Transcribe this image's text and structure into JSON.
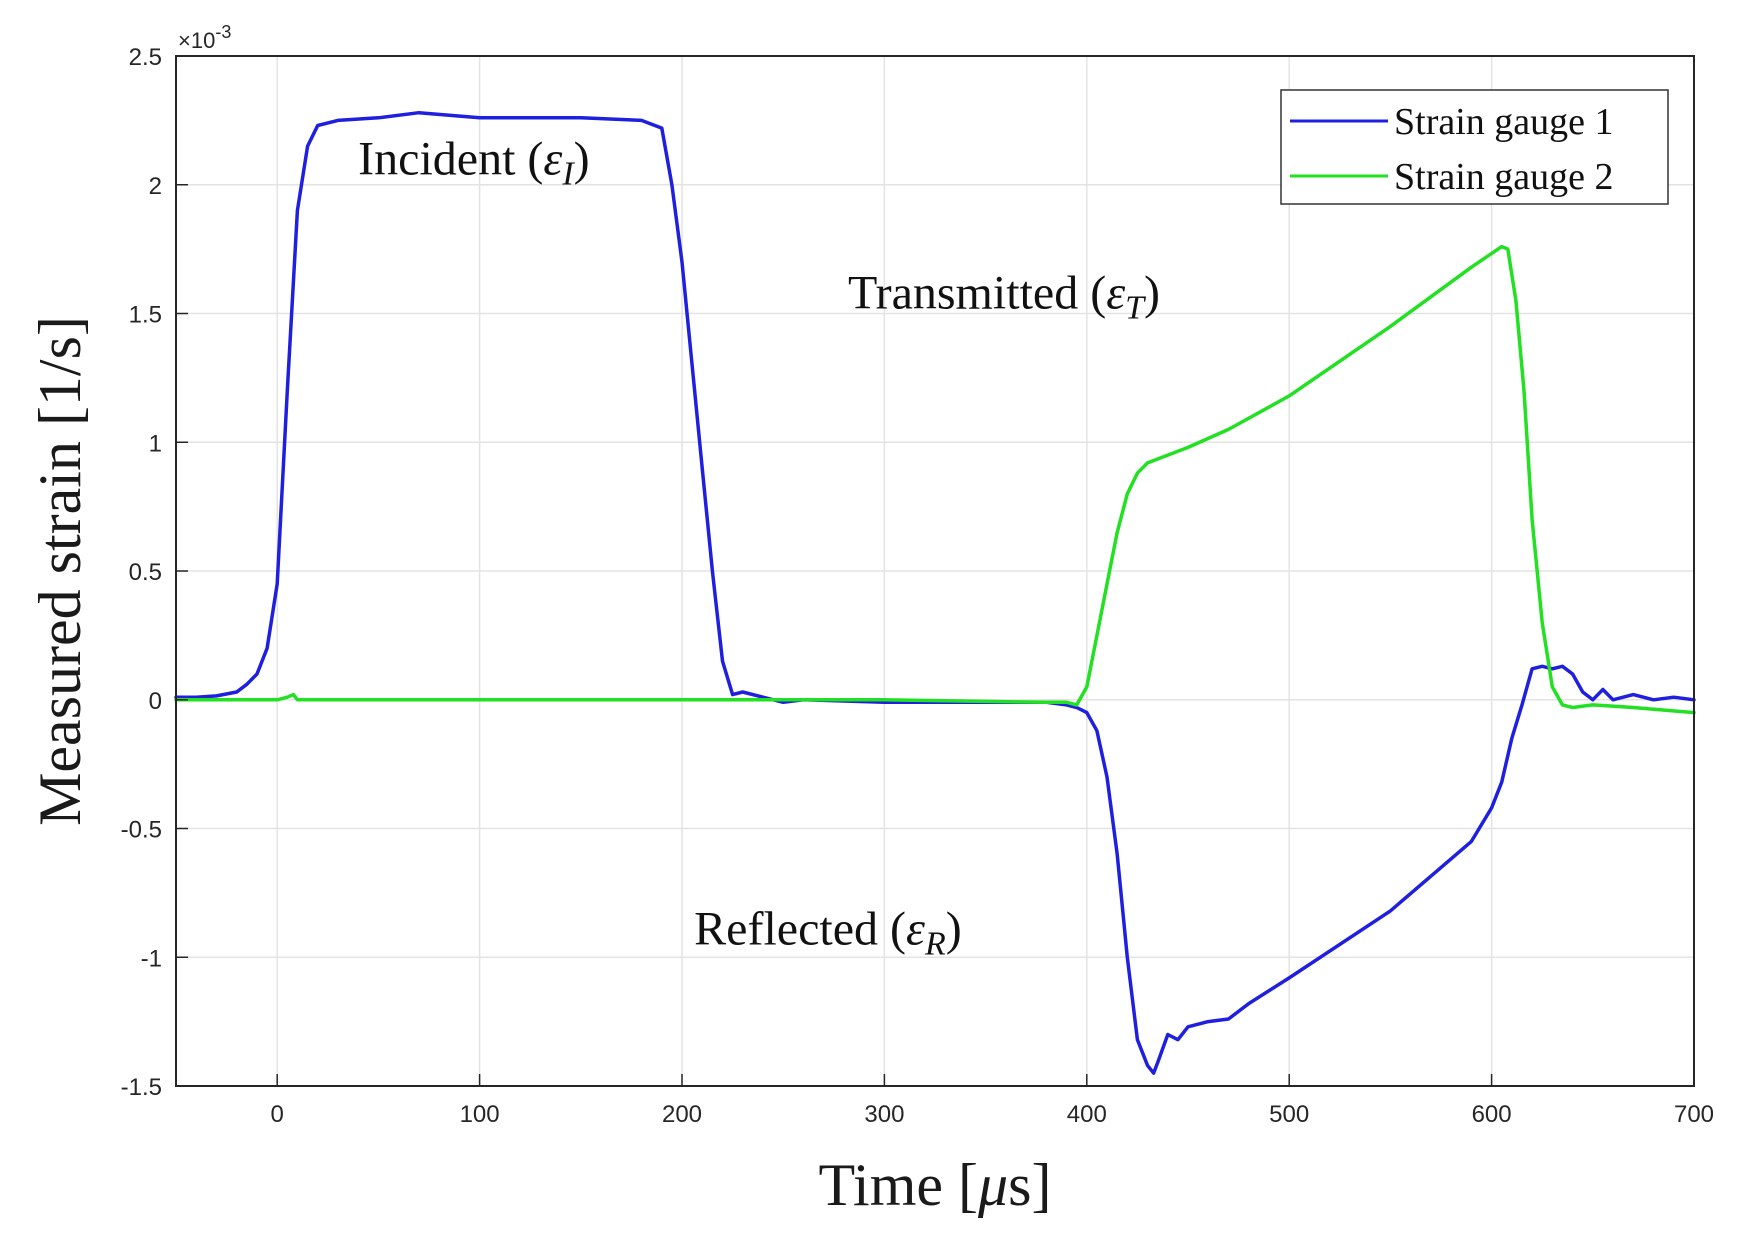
{
  "chart_data": {
    "type": "line",
    "title": "",
    "xlabel_prefix": "Time [",
    "xlabel_unit": "μ",
    "xlabel_suffix": "s]",
    "ylabel": "Measured strain [1/s]",
    "y_multiplier": "×10",
    "y_exponent": "-3",
    "xlim": [
      -50,
      700
    ],
    "ylim": [
      -1.5,
      2.5
    ],
    "xticks": [
      0,
      100,
      200,
      300,
      400,
      500,
      600,
      700
    ],
    "yticks": [
      -1.5,
      -1,
      -0.5,
      0,
      0.5,
      1,
      1.5,
      2,
      2.5
    ],
    "xtick_labels": [
      "0",
      "100",
      "200",
      "300",
      "400",
      "500",
      "600",
      "700"
    ],
    "ytick_labels": [
      "-1.5",
      "-1",
      "-0.5",
      "0",
      "0.5",
      "1",
      "1.5",
      "2",
      "2.5"
    ],
    "grid": true,
    "legend_position": "top-right",
    "series": [
      {
        "name": "Strain gauge 1",
        "color": "#1f1fe0",
        "x": [
          -50,
          -40,
          -30,
          -20,
          -15,
          -10,
          -5,
          0,
          5,
          10,
          15,
          20,
          30,
          50,
          70,
          100,
          150,
          180,
          190,
          195,
          200,
          205,
          210,
          215,
          220,
          225,
          230,
          240,
          250,
          260,
          300,
          350,
          380,
          390,
          395,
          400,
          405,
          410,
          415,
          420,
          425,
          430,
          433,
          435,
          440,
          445,
          450,
          460,
          470,
          480,
          500,
          550,
          590,
          600,
          605,
          610,
          615,
          620,
          625,
          630,
          635,
          640,
          645,
          650,
          655,
          660,
          670,
          680,
          690,
          700
        ],
        "y": [
          0.01,
          0.01,
          0.015,
          0.03,
          0.06,
          0.1,
          0.2,
          0.45,
          1.2,
          1.9,
          2.15,
          2.23,
          2.25,
          2.26,
          2.28,
          2.26,
          2.26,
          2.25,
          2.22,
          2.0,
          1.7,
          1.3,
          0.9,
          0.5,
          0.15,
          0.02,
          0.03,
          0.01,
          -0.01,
          0.0,
          -0.01,
          -0.01,
          -0.01,
          -0.02,
          -0.03,
          -0.05,
          -0.12,
          -0.3,
          -0.6,
          -1.0,
          -1.32,
          -1.42,
          -1.45,
          -1.41,
          -1.3,
          -1.32,
          -1.27,
          -1.25,
          -1.24,
          -1.18,
          -1.08,
          -0.82,
          -0.55,
          -0.42,
          -0.32,
          -0.15,
          -0.02,
          0.12,
          0.13,
          0.12,
          0.13,
          0.1,
          0.03,
          0.0,
          0.04,
          0.0,
          0.02,
          0.0,
          0.01,
          0.0
        ]
      },
      {
        "name": "Strain gauge 2",
        "color": "#22e022",
        "x": [
          -50,
          0,
          5,
          8,
          10,
          15,
          50,
          100,
          200,
          300,
          380,
          390,
          395,
          400,
          405,
          410,
          415,
          420,
          425,
          430,
          440,
          450,
          470,
          500,
          550,
          590,
          605,
          608,
          612,
          616,
          620,
          625,
          630,
          635,
          640,
          650,
          670,
          700
        ],
        "y": [
          0.0,
          0.0,
          0.01,
          0.02,
          0.0,
          0.0,
          0.0,
          0.0,
          0.0,
          0.0,
          -0.01,
          -0.01,
          -0.02,
          0.05,
          0.25,
          0.45,
          0.65,
          0.8,
          0.88,
          0.92,
          0.95,
          0.98,
          1.05,
          1.18,
          1.45,
          1.68,
          1.76,
          1.75,
          1.55,
          1.2,
          0.7,
          0.3,
          0.05,
          -0.02,
          -0.03,
          -0.02,
          -0.03,
          -0.05
        ]
      }
    ],
    "annotations": [
      {
        "id": "incident",
        "label": "Incident (",
        "symbol": "ε",
        "subscript": "I",
        "close": ")",
        "x": 40,
        "y": 2.04
      },
      {
        "id": "transmitted",
        "label": "Transmitted (",
        "symbol": "ε",
        "subscript": "T",
        "close": ")",
        "x": 282,
        "y": 1.52
      },
      {
        "id": "reflected",
        "label": "Reflected (",
        "symbol": "ε",
        "subscript": "R",
        "close": ")",
        "x": 206,
        "y": -0.95
      }
    ]
  }
}
